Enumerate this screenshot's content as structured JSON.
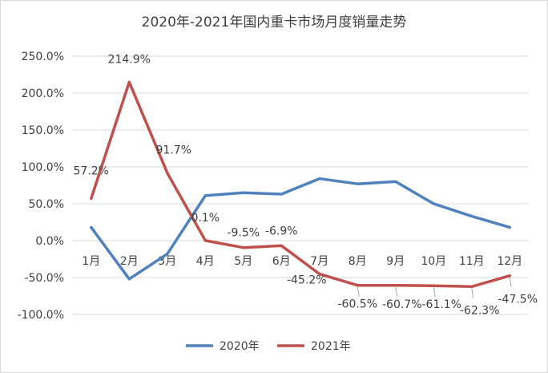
{
  "chart_data": {
    "type": "line",
    "title": "2020年-2021年国内重卡市场月度销量走势",
    "categories": [
      "1月",
      "2月",
      "3月",
      "4月",
      "5月",
      "6月",
      "7月",
      "8月",
      "9月",
      "10月",
      "11月",
      "12月"
    ],
    "y_ticks": [
      "250.0%",
      "200.0%",
      "150.0%",
      "100.0%",
      "50.0%",
      "0.0%",
      "-50.0%",
      "-100.0%"
    ],
    "ylim": [
      -100,
      250
    ],
    "grid": true,
    "legend_position": "bottom",
    "series": [
      {
        "name": "2020年",
        "color": "#4f81bd",
        "values": [
          18,
          -52,
          -18,
          61,
          65,
          63,
          84,
          77,
          80,
          50,
          33,
          18
        ],
        "labels": []
      },
      {
        "name": "2021年",
        "color": "#c0504d",
        "values": [
          57.2,
          214.9,
          91.7,
          0.1,
          -9.5,
          -6.9,
          -45.2,
          -60.5,
          -60.7,
          -61.1,
          -62.3,
          -47.5
        ],
        "labels": [
          "57.2%",
          "214.9%",
          "91.7%",
          "0.1%",
          "-9.5%",
          "-6.9%",
          "-45.2%",
          "-60.5%",
          "-60.7%",
          "-61.1%",
          "-62.3%",
          "-47.5%"
        ]
      }
    ]
  }
}
